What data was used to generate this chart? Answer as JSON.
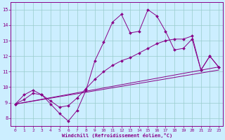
{
  "bg_color": "#cceeff",
  "grid_color": "#99cccc",
  "line_color": "#880088",
  "xlabel": "Windchill (Refroidissement éolien,°C)",
  "xlim": [
    -0.5,
    23.5
  ],
  "ylim": [
    7.5,
    15.5
  ],
  "yticks": [
    8,
    9,
    10,
    11,
    12,
    13,
    14,
    15
  ],
  "xticks": [
    0,
    1,
    2,
    3,
    4,
    5,
    6,
    7,
    8,
    9,
    10,
    11,
    12,
    13,
    14,
    15,
    16,
    17,
    18,
    19,
    20,
    21,
    22,
    23
  ],
  "line1_x": [
    0,
    1,
    2,
    3,
    4,
    5,
    6,
    7,
    8,
    9,
    10,
    11,
    12,
    13,
    14,
    15,
    16,
    17,
    18,
    19,
    20,
    21,
    22,
    23
  ],
  "line1_y": [
    8.9,
    9.2,
    9.6,
    9.5,
    8.9,
    8.3,
    7.8,
    8.5,
    9.8,
    11.7,
    12.9,
    14.2,
    14.7,
    13.5,
    13.6,
    15.0,
    14.6,
    13.6,
    12.4,
    12.5,
    13.1,
    11.1,
    12.0,
    11.3
  ],
  "line2_x": [
    0,
    1,
    2,
    3,
    4,
    5,
    6,
    7,
    8,
    9,
    10,
    11,
    12,
    13,
    14,
    15,
    16,
    17,
    18,
    19,
    20,
    21,
    22,
    23
  ],
  "line2_y": [
    8.9,
    9.5,
    9.8,
    9.5,
    9.1,
    8.7,
    8.8,
    9.3,
    9.9,
    10.5,
    11.0,
    11.4,
    11.7,
    11.9,
    12.2,
    12.5,
    12.8,
    13.0,
    13.1,
    13.1,
    13.3,
    11.1,
    12.0,
    11.3
  ],
  "line3_x": [
    0,
    23
  ],
  "line3_y": [
    8.9,
    11.3
  ],
  "line4_x": [
    0,
    23
  ],
  "line4_y": [
    8.9,
    11.1
  ]
}
